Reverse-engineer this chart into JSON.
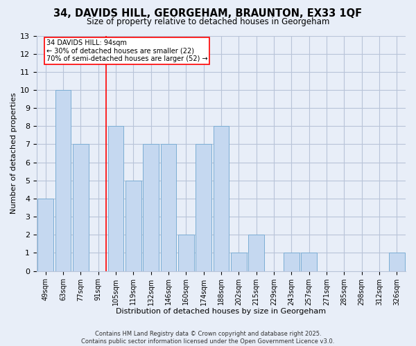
{
  "title_line1": "34, DAVIDS HILL, GEORGEHAM, BRAUNTON, EX33 1QF",
  "title_line2": "Size of property relative to detached houses in Georgeham",
  "xlabel": "Distribution of detached houses by size in Georgeham",
  "ylabel": "Number of detached properties",
  "categories": [
    "49sqm",
    "63sqm",
    "77sqm",
    "91sqm",
    "105sqm",
    "119sqm",
    "132sqm",
    "146sqm",
    "160sqm",
    "174sqm",
    "188sqm",
    "202sqm",
    "215sqm",
    "229sqm",
    "243sqm",
    "257sqm",
    "271sqm",
    "285sqm",
    "298sqm",
    "312sqm",
    "326sqm"
  ],
  "values": [
    4,
    10,
    7,
    0,
    8,
    5,
    7,
    7,
    2,
    7,
    8,
    1,
    2,
    0,
    1,
    1,
    0,
    0,
    0,
    0,
    1
  ],
  "bar_color": "#c5d8f0",
  "bar_edge_color": "#7badd4",
  "annotation_text": "34 DAVIDS HILL: 94sqm\n← 30% of detached houses are smaller (22)\n70% of semi-detached houses are larger (52) →",
  "annotation_box_color": "white",
  "annotation_box_edge_color": "red",
  "vline_color": "red",
  "ylim": [
    0,
    13
  ],
  "yticks": [
    0,
    1,
    2,
    3,
    4,
    5,
    6,
    7,
    8,
    9,
    10,
    11,
    12,
    13
  ],
  "footer_line1": "Contains HM Land Registry data © Crown copyright and database right 2025.",
  "footer_line2": "Contains public sector information licensed under the Open Government Licence v3.0.",
  "bg_color": "#e8eef8",
  "grid_color": "#b8c4d8"
}
